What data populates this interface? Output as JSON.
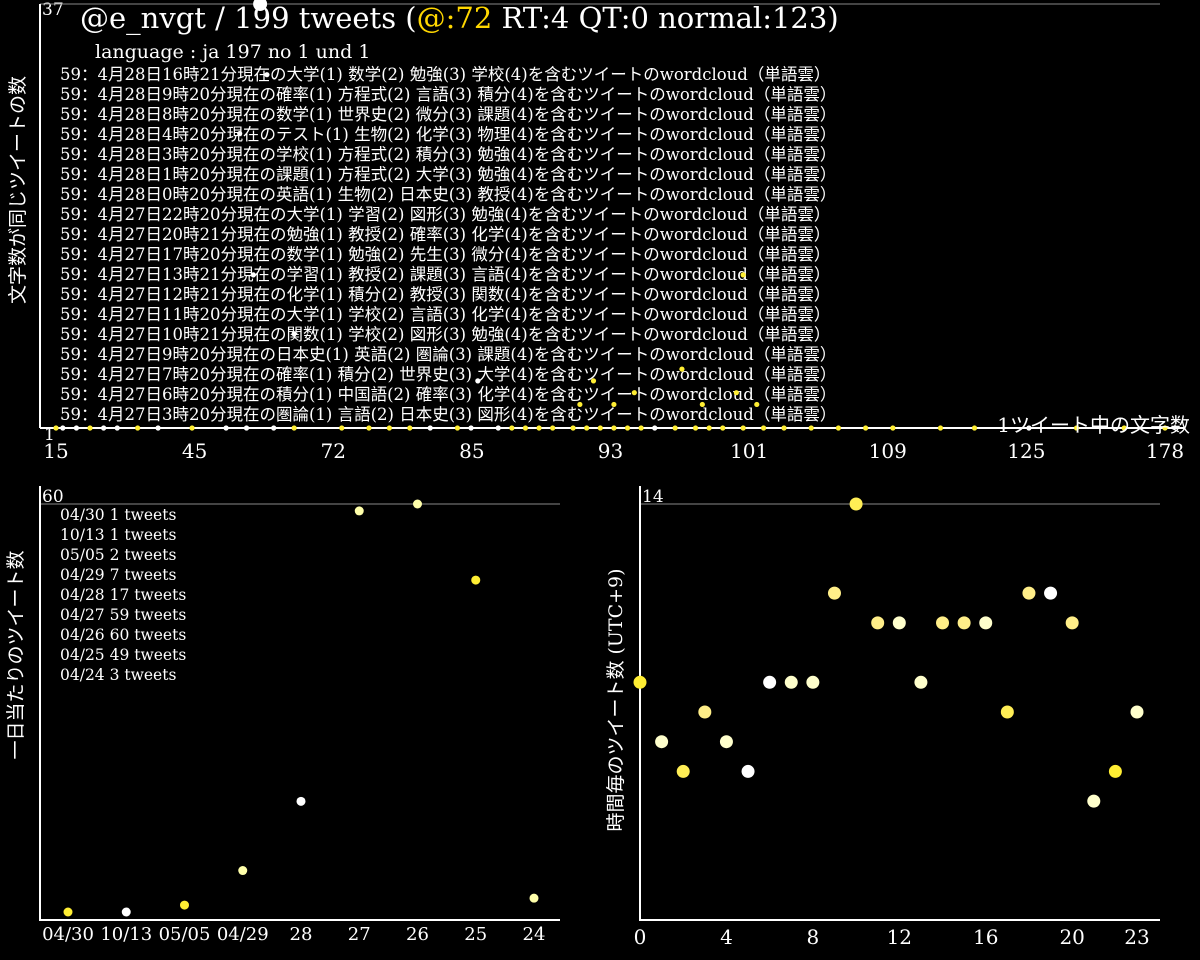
{
  "header": {
    "count_prefix": "37",
    "user": "@e_nvgt",
    "separator": " / ",
    "tweets": "199 tweets",
    "paren_open": " (",
    "mentions": "@:72",
    "rest": " RT:4 QT:0 normal:123)",
    "language": "language : ja 197 no 1 und 1"
  },
  "colors": {
    "background": "#000000",
    "text": "#ffffff",
    "mentions": "#ffd700",
    "dot_yellow": "#ffee33",
    "dot_white": "#ffffff",
    "dot_pale": "#ffffaa"
  },
  "chart_data": [
    {
      "type": "scatter",
      "ylabel": "文字数が同じツイートの数",
      "xlabel": "1ツイート中の文字数",
      "y_top_label": "37",
      "y_min_label": "1",
      "ylim": [
        1,
        37
      ],
      "xlim": [
        15,
        178
      ],
      "x_ticks": [
        "15",
        "45",
        "72",
        "85",
        "93",
        "101",
        "109",
        "125",
        "178"
      ],
      "annotations": [
        "59：4月28日16時21分現在の大学(1) 数学(2) 勉強(3) 学校(4)を含むツイートのwordcloud（単語雲）",
        "59：4月28日9時20分現在の確率(1) 方程式(2) 言語(3) 積分(4)を含むツイートのwordcloud（単語雲）",
        "59：4月28日8時20分現在の数学(1) 世界史(2) 微分(3) 課題(4)を含むツイートのwordcloud（単語雲）",
        "59：4月28日4時20分現在のテスト(1) 生物(2) 化学(3) 物理(4)を含むツイートのwordcloud（単語雲）",
        "59：4月28日3時20分現在の学校(1) 方程式(2) 積分(3) 勉強(4)を含むツイートのwordcloud（単語雲）",
        "59：4月28日1時20分現在の課題(1) 方程式(2) 大学(3) 勉強(4)を含むツイートのwordcloud（単語雲）",
        "59：4月28日0時20分現在の英語(1) 生物(2) 日本史(3) 教授(4)を含むツイートのwordcloud（単語雲）",
        "59：4月27日22時20分現在の大学(1) 学習(2) 図形(3) 勉強(4)を含むツイートのwordcloud（単語雲）",
        "59：4月27日20時21分現在の勉強(1) 教授(2) 確率(3) 化学(4)を含むツイートのwordcloud（単語雲）",
        "59：4月27日17時20分現在の数学(1) 勉強(2) 先生(3) 微分(4)を含むツイートのwordcloud（単語雲）",
        "59：4月27日13時21分現在の学習(1) 教授(2) 課題(3) 言語(4)を含むツイートのwordcloud（単語雲）",
        "59：4月27日12時21分現在の化学(1) 積分(2) 教授(3) 関数(4)を含むツイートのwordcloud（単語雲）",
        "59：4月27日11時20分現在の大学(1) 学校(2) 言語(3) 化学(4)を含むツイートのwordcloud（単語雲）",
        "59：4月27日10時21分現在の関数(1) 学校(2) 図形(3) 勉強(4)を含むツイートのwordcloud（単語雲）",
        "59：4月27日9時20分現在の日本史(1) 英語(2) 圏論(3) 課題(4)を含むツイートのwordcloud（単語雲）",
        "59：4月27日7時20分現在の確率(1) 積分(2) 世界史(3) 大学(4)を含むツイートのwordcloud（単語雲）",
        "59：4月27日6時20分現在の積分(1) 中国語(2) 確率(3) 化学(4)を含むツイートのwordcloud（単語雲）",
        "59：4月27日3時20分現在の圏論(1) 言語(2) 日本史(3) 図形(4)を含むツイートのwordcloud（単語雲）"
      ],
      "points": [
        {
          "x": 15,
          "y": 1,
          "c": "#ffee33"
        },
        {
          "x": 16,
          "y": 1,
          "c": "#ffffff"
        },
        {
          "x": 18,
          "y": 1,
          "c": "#ffffff"
        },
        {
          "x": 20,
          "y": 1,
          "c": "#ffee33"
        },
        {
          "x": 22,
          "y": 1,
          "c": "#ffffff"
        },
        {
          "x": 24,
          "y": 1,
          "c": "#ffffff"
        },
        {
          "x": 27,
          "y": 1,
          "c": "#ffee33"
        },
        {
          "x": 30,
          "y": 1,
          "c": "#ffffff"
        },
        {
          "x": 35,
          "y": 1,
          "c": "#ffee33"
        },
        {
          "x": 40,
          "y": 1,
          "c": "#ffffff"
        },
        {
          "x": 43,
          "y": 1,
          "c": "#ffffff"
        },
        {
          "x": 47,
          "y": 1,
          "c": "#ffffff"
        },
        {
          "x": 50,
          "y": 1,
          "c": "#ffee33"
        },
        {
          "x": 57,
          "y": 1,
          "c": "#ffee33"
        },
        {
          "x": 61,
          "y": 1,
          "c": "#ffee33"
        },
        {
          "x": 64,
          "y": 1,
          "c": "#ffee33"
        },
        {
          "x": 67,
          "y": 1,
          "c": "#ffee33"
        },
        {
          "x": 70,
          "y": 1,
          "c": "#ffffff"
        },
        {
          "x": 74,
          "y": 1,
          "c": "#ffee33"
        },
        {
          "x": 76,
          "y": 1,
          "c": "#ffffff"
        },
        {
          "x": 80,
          "y": 1,
          "c": "#ffffff"
        },
        {
          "x": 82,
          "y": 1,
          "c": "#ffee33"
        },
        {
          "x": 84,
          "y": 1,
          "c": "#ffee33"
        },
        {
          "x": 86,
          "y": 1,
          "c": "#ffee33"
        },
        {
          "x": 88,
          "y": 1,
          "c": "#ffee33"
        },
        {
          "x": 91,
          "y": 1,
          "c": "#ffee33"
        },
        {
          "x": 93,
          "y": 1,
          "c": "#ffee33"
        },
        {
          "x": 95,
          "y": 1,
          "c": "#ffee33"
        },
        {
          "x": 97,
          "y": 1,
          "c": "#ffee33"
        },
        {
          "x": 99,
          "y": 1,
          "c": "#ffee33"
        },
        {
          "x": 101,
          "y": 1,
          "c": "#ffee33"
        },
        {
          "x": 103,
          "y": 1,
          "c": "#ffffff"
        },
        {
          "x": 106,
          "y": 1,
          "c": "#ffee33"
        },
        {
          "x": 109,
          "y": 1,
          "c": "#ffee33"
        },
        {
          "x": 111,
          "y": 1,
          "c": "#ffee33"
        },
        {
          "x": 113,
          "y": 1,
          "c": "#ffee33"
        },
        {
          "x": 116,
          "y": 1,
          "c": "#ffee33"
        },
        {
          "x": 119,
          "y": 1,
          "c": "#ffee33"
        },
        {
          "x": 122,
          "y": 1,
          "c": "#ffee33"
        },
        {
          "x": 126,
          "y": 1,
          "c": "#ffee33"
        },
        {
          "x": 130,
          "y": 1,
          "c": "#ffee33"
        },
        {
          "x": 134,
          "y": 1,
          "c": "#ffee33"
        },
        {
          "x": 138,
          "y": 1,
          "c": "#ffee33"
        },
        {
          "x": 145,
          "y": 1,
          "c": "#ffee33"
        },
        {
          "x": 150,
          "y": 1,
          "c": "#ffee33"
        },
        {
          "x": 158,
          "y": 1,
          "c": "#ffffff"
        },
        {
          "x": 165,
          "y": 1,
          "c": "#ffee33"
        },
        {
          "x": 172,
          "y": 1,
          "c": "#ffee33"
        },
        {
          "x": 178,
          "y": 1,
          "c": "#ffee33"
        },
        {
          "x": 45,
          "y": 37,
          "c": "#ffffff",
          "r": 7
        },
        {
          "x": 42,
          "y": 26,
          "c": "#ffffff"
        },
        {
          "x": 46,
          "y": 31,
          "c": "#ffffff"
        },
        {
          "x": 44,
          "y": 14,
          "c": "#ffffff"
        },
        {
          "x": 50,
          "y": 9,
          "c": "#ffffff"
        },
        {
          "x": 77,
          "y": 5,
          "c": "#ffffff"
        },
        {
          "x": 92,
          "y": 3,
          "c": "#ffee33"
        },
        {
          "x": 94,
          "y": 5,
          "c": "#ffee33"
        },
        {
          "x": 97,
          "y": 3,
          "c": "#ffee33"
        },
        {
          "x": 100,
          "y": 4,
          "c": "#ffee33"
        },
        {
          "x": 107,
          "y": 6,
          "c": "#ffee33"
        },
        {
          "x": 116,
          "y": 14,
          "c": "#ffee33"
        },
        {
          "x": 110,
          "y": 3,
          "c": "#ffee33"
        },
        {
          "x": 115,
          "y": 4,
          "c": "#ffee33"
        },
        {
          "x": 118,
          "y": 3,
          "c": "#ffee33"
        }
      ]
    },
    {
      "type": "scatter",
      "ylabel": "一日当たりのツイート数",
      "y_top_label": "60",
      "ylim": [
        1,
        60
      ],
      "categories": [
        "04/30",
        "10/13",
        "05/05",
        "04/29",
        "28",
        "27",
        "26",
        "25",
        "24"
      ],
      "values": [
        1,
        1,
        2,
        7,
        17,
        59,
        60,
        49,
        3
      ],
      "colors": [
        "#ffee33",
        "#ffffff",
        "#ffee33",
        "#ffffaa",
        "#ffffff",
        "#ffffaa",
        "#ffffaa",
        "#ffee33",
        "#ffffaa"
      ],
      "legend": [
        "04/30 1 tweets",
        "10/13 1 tweets",
        "05/05 2 tweets",
        "04/29 7 tweets",
        "04/28 17 tweets",
        "04/27 59 tweets",
        "04/26 60 tweets",
        "04/25 49 tweets",
        "04/24 3 tweets"
      ]
    },
    {
      "type": "scatter",
      "ylabel": "時間毎のツイート数 (UTC+9)",
      "y_top_label": "14",
      "ylim": [
        0,
        14
      ],
      "xlim": [
        0,
        23
      ],
      "x_ticks": [
        "0",
        "4",
        "8",
        "12",
        "16",
        "20",
        "23"
      ],
      "x": [
        0,
        1,
        2,
        3,
        4,
        5,
        6,
        7,
        8,
        9,
        10,
        11,
        12,
        13,
        14,
        15,
        16,
        17,
        18,
        19,
        20,
        21,
        22,
        23
      ],
      "values": [
        8,
        6,
        5,
        7,
        6,
        5,
        8,
        8,
        8,
        11,
        14,
        10,
        10,
        8,
        10,
        10,
        10,
        7,
        11,
        11,
        10,
        4,
        5,
        7
      ],
      "colors": [
        "#ffee33",
        "#ffffcc",
        "#ffee55",
        "#ffee88",
        "#ffffcc",
        "#ffffff",
        "#ffffff",
        "#ffffcc",
        "#ffffcc",
        "#ffee88",
        "#ffee55",
        "#ffee88",
        "#ffffcc",
        "#ffffcc",
        "#ffee88",
        "#ffee88",
        "#ffffcc",
        "#ffee55",
        "#ffee88",
        "#ffffff",
        "#ffee88",
        "#ffffcc",
        "#ffee33",
        "#ffffcc"
      ]
    }
  ]
}
